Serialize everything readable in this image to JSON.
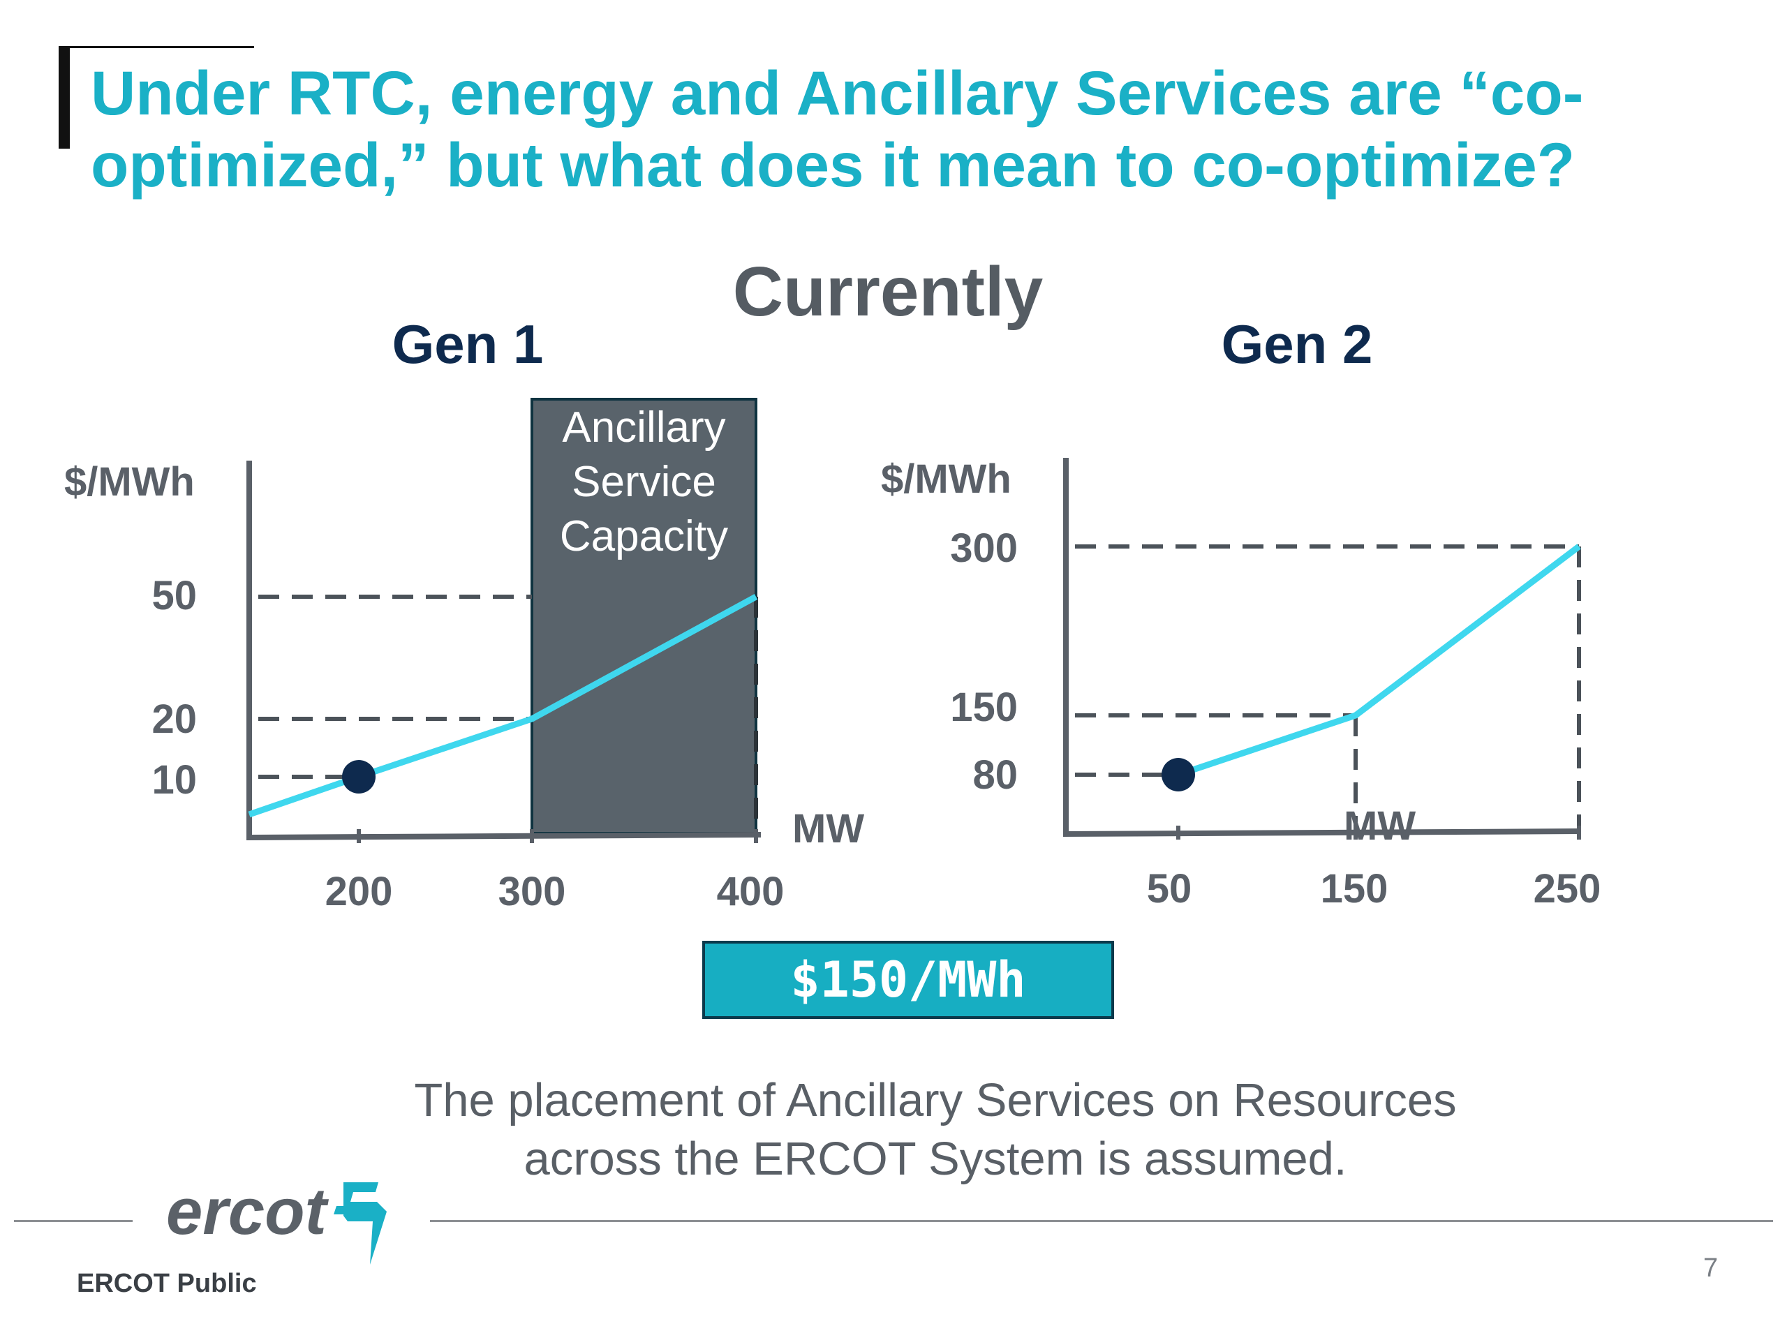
{
  "slide": {
    "title": "Under RTC, energy and Ancillary Services are “co-optimized,” but what does it mean to co-optimize?",
    "section_heading": "Currently",
    "price_label": "$150/MWh",
    "footnote_line1": "The placement of Ancillary Services on Resources",
    "footnote_line2": "across the ERCOT System is assumed.",
    "logo_text": "ercot",
    "footer_label": "ERCOT Public",
    "page_number": "7"
  },
  "colors": {
    "title": "#1ab0c6",
    "curve": "#3fd7ee",
    "dispatch_point": "#0e2a4e",
    "ancillary_box": "#59636b",
    "price_box": "#17aec2"
  },
  "chart_data": [
    {
      "type": "line",
      "title": "Gen 1",
      "ylabel": "$/MWh",
      "xlabel": "MW",
      "x_ticks": [
        "200",
        "300",
        "400"
      ],
      "y_ticks": [
        "10",
        "20",
        "50"
      ],
      "series": [
        {
          "x": [
            140,
            200,
            300,
            400
          ],
          "y": [
            4,
            10,
            20,
            50
          ]
        }
      ],
      "dispatch_point": {
        "x": 200,
        "y": 10
      },
      "dashed_guides": [
        {
          "from": [
            140,
            10
          ],
          "to": [
            200,
            10
          ]
        },
        {
          "from": [
            140,
            20
          ],
          "to": [
            300,
            20
          ]
        },
        {
          "from": [
            140,
            50
          ],
          "to": [
            300,
            50
          ]
        }
      ],
      "ancillary_region": {
        "x_from": 300,
        "x_to": 400,
        "label": "Ancillary Service Capacity"
      }
    },
    {
      "type": "line",
      "title": "Gen 2",
      "ylabel": "$/MWh",
      "xlabel": "MW",
      "x_ticks": [
        "50",
        "150",
        "250"
      ],
      "y_ticks": [
        "80",
        "150",
        "300"
      ],
      "series": [
        {
          "x": [
            50,
            150,
            250
          ],
          "y": [
            80,
            150,
            300
          ]
        }
      ],
      "dispatch_point": {
        "x": 50,
        "y": 80
      },
      "dashed_guides": [
        {
          "from": [
            0,
            80
          ],
          "to": [
            50,
            80
          ]
        },
        {
          "from": [
            0,
            150
          ],
          "to": [
            150,
            150
          ]
        },
        {
          "from": [
            0,
            300
          ],
          "to": [
            250,
            300
          ]
        }
      ]
    }
  ]
}
